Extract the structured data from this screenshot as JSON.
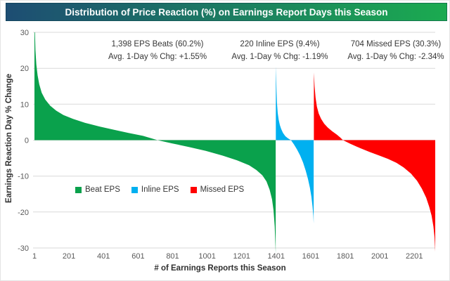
{
  "title": {
    "text": "Distribution of Price Reaction (%) on Earnings Report Days this Season",
    "bg_start": "#1d4d73",
    "bg_end": "#1bab50",
    "text_color": "#ffffff"
  },
  "annotations": [
    {
      "line1": "1,398 EPS Beats (60.2%)",
      "line2": "Avg. 1-Day % Chg: +1.55%"
    },
    {
      "line1": "220 Inline EPS (9.4%)",
      "line2": "Avg. 1-Day % Chg: -1.19%"
    },
    {
      "line1": "704 Missed EPS (30.3%)",
      "line2": "Avg. 1-Day % Chg: -2.34%"
    }
  ],
  "legend": [
    {
      "label": "Beat EPS",
      "color": "#0aa14c"
    },
    {
      "label": "Inline EPS",
      "color": "#00b0f0"
    },
    {
      "label": "Missed EPS",
      "color": "#ff0000"
    }
  ],
  "chart_data": {
    "type": "area",
    "title": "Distribution of Price Reaction (%) on Earnings Report Days this Season",
    "xlabel": "# of Earnings Reports this Season",
    "ylabel": "Earnings Reaction Day % Change",
    "ylim": [
      -30,
      30
    ],
    "yticks": [
      30,
      20,
      10,
      0,
      -10,
      -20,
      -30
    ],
    "xticks": [
      1,
      201,
      401,
      601,
      801,
      1001,
      1201,
      1401,
      1601,
      1801,
      2001,
      2201
    ],
    "x_total": 2322,
    "grid": true,
    "grid_color": "#d9d9d9",
    "legend_position": "inside-lower-left",
    "series": [
      {
        "name": "Beat EPS",
        "color": "#0aa14c",
        "count": 1398,
        "pct": "60.2%",
        "avg_1day_chg": "+1.55%",
        "start": 1,
        "profile": [
          [
            0,
            30
          ],
          [
            0.002,
            30
          ],
          [
            0.004,
            25
          ],
          [
            0.008,
            21
          ],
          [
            0.013,
            18
          ],
          [
            0.02,
            15.5
          ],
          [
            0.03,
            13.2
          ],
          [
            0.045,
            11.3
          ],
          [
            0.065,
            9.6
          ],
          [
            0.09,
            8.2
          ],
          [
            0.12,
            7.0
          ],
          [
            0.16,
            5.9
          ],
          [
            0.21,
            4.8
          ],
          [
            0.27,
            3.8
          ],
          [
            0.33,
            2.9
          ],
          [
            0.39,
            2.0
          ],
          [
            0.45,
            1.2
          ],
          [
            0.51,
            0
          ],
          [
            0.57,
            -0.9
          ],
          [
            0.64,
            -1.9
          ],
          [
            0.71,
            -3.0
          ],
          [
            0.78,
            -4.3
          ],
          [
            0.84,
            -5.6
          ],
          [
            0.89,
            -7.0
          ],
          [
            0.92,
            -8.3
          ],
          [
            0.945,
            -9.8
          ],
          [
            0.962,
            -11.5
          ],
          [
            0.975,
            -13.8
          ],
          [
            0.985,
            -16.5
          ],
          [
            0.991,
            -19.5
          ],
          [
            0.996,
            -24
          ],
          [
            1,
            -31.5
          ]
        ]
      },
      {
        "name": "Inline EPS",
        "color": "#00b0f0",
        "count": 220,
        "pct": "9.4%",
        "avg_1day_chg": "-1.19%",
        "start": 1399,
        "profile": [
          [
            0,
            20.5
          ],
          [
            0.008,
            17
          ],
          [
            0.018,
            13.5
          ],
          [
            0.03,
            10.3
          ],
          [
            0.05,
            7.5
          ],
          [
            0.075,
            5.6
          ],
          [
            0.105,
            4.2
          ],
          [
            0.14,
            3.1
          ],
          [
            0.19,
            2.0
          ],
          [
            0.25,
            1.1
          ],
          [
            0.32,
            0.5
          ],
          [
            0.4,
            0
          ],
          [
            0.48,
            -1.2
          ],
          [
            0.56,
            -2.6
          ],
          [
            0.64,
            -4.2
          ],
          [
            0.72,
            -6.2
          ],
          [
            0.79,
            -8.5
          ],
          [
            0.85,
            -10.8
          ],
          [
            0.9,
            -13.2
          ],
          [
            0.94,
            -15.8
          ],
          [
            0.97,
            -18.5
          ],
          [
            0.99,
            -21
          ],
          [
            1,
            -23.2
          ]
        ]
      },
      {
        "name": "Missed EPS",
        "color": "#ff0000",
        "count": 704,
        "pct": "30.3%",
        "avg_1day_chg": "-2.34%",
        "start": 1619,
        "profile": [
          [
            0,
            18.8
          ],
          [
            0.006,
            15
          ],
          [
            0.014,
            11.8
          ],
          [
            0.025,
            9.3
          ],
          [
            0.04,
            7.4
          ],
          [
            0.06,
            5.9
          ],
          [
            0.085,
            4.6
          ],
          [
            0.115,
            3.5
          ],
          [
            0.15,
            2.5
          ],
          [
            0.19,
            1.5
          ],
          [
            0.215,
            0.8
          ],
          [
            0.24,
            0
          ],
          [
            0.3,
            -1.0
          ],
          [
            0.38,
            -2.2
          ],
          [
            0.46,
            -3.3
          ],
          [
            0.54,
            -4.3
          ],
          [
            0.61,
            -5.2
          ],
          [
            0.68,
            -6.3
          ],
          [
            0.74,
            -7.6
          ],
          [
            0.8,
            -9.3
          ],
          [
            0.85,
            -11.3
          ],
          [
            0.89,
            -13.5
          ],
          [
            0.925,
            -16
          ],
          [
            0.95,
            -18.5
          ],
          [
            0.97,
            -21
          ],
          [
            0.985,
            -24
          ],
          [
            0.994,
            -27
          ],
          [
            1,
            -31
          ]
        ]
      }
    ]
  }
}
